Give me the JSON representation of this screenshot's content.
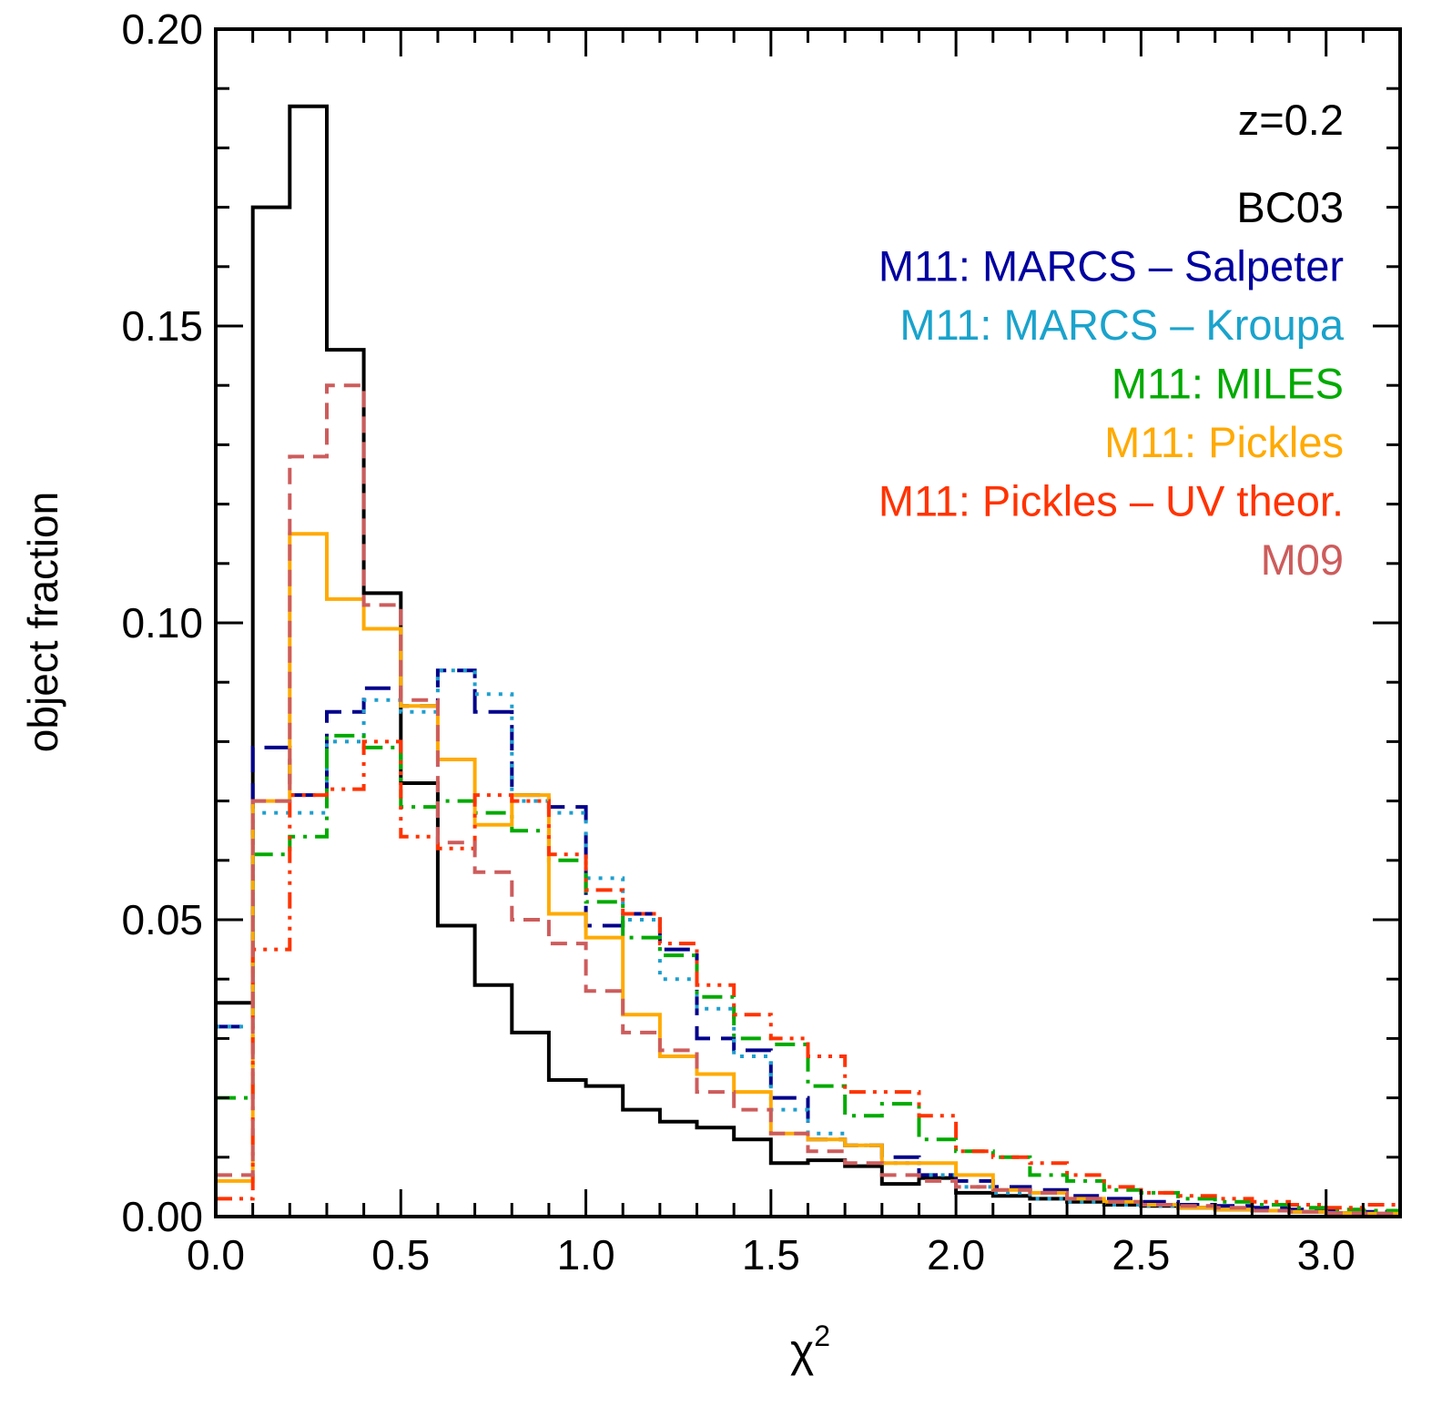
{
  "chart_data": {
    "type": "step-histogram",
    "title": "",
    "xlabel": "χ",
    "xlabel_sup": "2",
    "ylabel": "object fraction",
    "xlim": [
      0.0,
      3.2
    ],
    "ylim": [
      0.0,
      0.2
    ],
    "grid": false,
    "legend_position": "top-right",
    "annotation": "z=0.2",
    "x_tick_values": [
      0.0,
      0.5,
      1.0,
      1.5,
      2.0,
      2.5,
      3.0
    ],
    "x_tick_labels": [
      "0.0",
      "0.5",
      "1.0",
      "1.5",
      "2.0",
      "2.5",
      "3.0"
    ],
    "y_tick_values": [
      0.0,
      0.05,
      0.1,
      0.15,
      0.2
    ],
    "y_tick_labels": [
      "0.00",
      "0.05",
      "0.10",
      "0.15",
      "0.20"
    ],
    "bin_width": 0.1,
    "bin_start": 0.0,
    "series": [
      {
        "name": "BC03",
        "color": "#000000",
        "dash": "solid",
        "values": [
          0.036,
          0.17,
          0.187,
          0.146,
          0.105,
          0.073,
          0.049,
          0.039,
          0.031,
          0.023,
          0.022,
          0.018,
          0.016,
          0.015,
          0.013,
          0.009,
          0.0095,
          0.0085,
          0.0055,
          0.0065,
          0.004,
          0.0035,
          0.003,
          0.0025,
          0.002,
          0.0018,
          0.0015,
          0.0012,
          0.001,
          0.0008,
          0.0006,
          0.0005
        ]
      },
      {
        "name": "M11: MARCS – Salpeter",
        "color": "#00008b",
        "dash": "longdash",
        "values": [
          0.032,
          0.079,
          0.071,
          0.085,
          0.089,
          0.086,
          0.092,
          0.085,
          0.071,
          0.069,
          0.049,
          0.051,
          0.045,
          0.03,
          0.028,
          0.02,
          0.013,
          0.012,
          0.01,
          0.007,
          0.006,
          0.005,
          0.0045,
          0.0035,
          0.003,
          0.0025,
          0.002,
          0.0018,
          0.0015,
          0.0012,
          0.001,
          0.0008
        ]
      },
      {
        "name": "M11: MARCS – Kroupa",
        "color": "#1e9fcf",
        "dash": "dotted",
        "values": [
          0.032,
          0.068,
          0.068,
          0.08,
          0.087,
          0.085,
          0.092,
          0.088,
          0.07,
          0.068,
          0.057,
          0.05,
          0.04,
          0.035,
          0.027,
          0.018,
          0.014,
          0.012,
          0.009,
          0.007,
          0.005,
          0.004,
          0.003,
          0.0025,
          0.002,
          0.0018,
          0.0015,
          0.0012,
          0.001,
          0.0008,
          0.0006,
          0.0005
        ]
      },
      {
        "name": "M11: MILES",
        "color": "#00aa00",
        "dash": "dashdot",
        "values": [
          0.02,
          0.061,
          0.064,
          0.081,
          0.079,
          0.069,
          0.07,
          0.068,
          0.065,
          0.06,
          0.053,
          0.047,
          0.044,
          0.037,
          0.03,
          0.029,
          0.022,
          0.017,
          0.019,
          0.013,
          0.011,
          0.01,
          0.007,
          0.006,
          0.0045,
          0.004,
          0.003,
          0.0025,
          0.002,
          0.0015,
          0.0012,
          0.001
        ]
      },
      {
        "name": "M11: Pickles",
        "color": "#ffaa00",
        "dash": "solid",
        "values": [
          0.006,
          0.07,
          0.115,
          0.104,
          0.099,
          0.086,
          0.077,
          0.066,
          0.071,
          0.051,
          0.047,
          0.034,
          0.027,
          0.024,
          0.021,
          0.014,
          0.013,
          0.012,
          0.009,
          0.009,
          0.007,
          0.0045,
          0.004,
          0.003,
          0.0025,
          0.002,
          0.0015,
          0.0012,
          0.001,
          0.0008,
          0.0006,
          0.0005
        ]
      },
      {
        "name": "M11: Pickles – UV theor.",
        "color": "#ff3300",
        "dash": "dashdotdot",
        "values": [
          0.003,
          0.045,
          0.071,
          0.072,
          0.08,
          0.064,
          0.062,
          0.071,
          0.07,
          0.061,
          0.055,
          0.051,
          0.046,
          0.039,
          0.034,
          0.03,
          0.027,
          0.021,
          0.021,
          0.017,
          0.011,
          0.01,
          0.009,
          0.007,
          0.005,
          0.004,
          0.0035,
          0.003,
          0.0025,
          0.002,
          0.0015,
          0.002
        ]
      },
      {
        "name": "M09",
        "color": "#cd5c5c",
        "dash": "dashed",
        "values": [
          0.007,
          0.07,
          0.128,
          0.14,
          0.103,
          0.087,
          0.063,
          0.058,
          0.05,
          0.046,
          0.038,
          0.031,
          0.028,
          0.021,
          0.018,
          0.014,
          0.011,
          0.009,
          0.007,
          0.006,
          0.005,
          0.0045,
          0.004,
          0.003,
          0.0025,
          0.002,
          0.0018,
          0.0015,
          0.001,
          0.0008,
          0.0006,
          0.0005
        ]
      }
    ]
  }
}
